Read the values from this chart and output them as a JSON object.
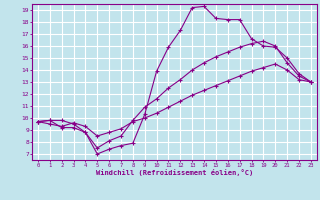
{
  "background_color": "#c2e4ec",
  "grid_color": "#ffffff",
  "line_color": "#880088",
  "xlabel": "Windchill (Refroidissement éolien,°C)",
  "xlim": [
    -0.5,
    23.5
  ],
  "ylim": [
    6.5,
    19.5
  ],
  "xticks": [
    0,
    1,
    2,
    3,
    4,
    5,
    6,
    7,
    8,
    9,
    10,
    11,
    12,
    13,
    14,
    15,
    16,
    17,
    18,
    19,
    20,
    21,
    22,
    23
  ],
  "yticks": [
    7,
    8,
    9,
    10,
    11,
    12,
    13,
    14,
    15,
    16,
    17,
    18,
    19
  ],
  "line1_x": [
    0,
    1,
    2,
    3,
    4,
    5,
    6,
    7,
    8,
    9,
    10,
    11,
    12,
    13,
    14,
    15,
    16,
    17,
    18,
    19,
    20,
    21,
    22,
    23
  ],
  "line1_y": [
    9.7,
    9.8,
    9.8,
    9.5,
    8.8,
    7.0,
    7.4,
    7.7,
    7.9,
    10.3,
    13.9,
    15.9,
    17.3,
    19.2,
    19.3,
    18.3,
    18.2,
    18.2,
    16.6,
    16.0,
    15.9,
    15.0,
    13.7,
    13.0
  ],
  "line2_x": [
    0,
    1,
    2,
    3,
    4,
    5,
    6,
    7,
    8,
    9,
    10,
    11,
    12,
    13,
    14,
    15,
    16,
    17,
    18,
    19,
    20,
    21,
    22,
    23
  ],
  "line2_y": [
    9.7,
    9.8,
    9.2,
    9.2,
    8.8,
    7.5,
    8.1,
    8.5,
    9.8,
    10.9,
    11.6,
    12.5,
    13.2,
    14.0,
    14.6,
    15.1,
    15.5,
    15.9,
    16.2,
    16.4,
    16.0,
    14.6,
    13.5,
    13.0
  ],
  "line3_x": [
    0,
    1,
    2,
    3,
    4,
    5,
    6,
    7,
    8,
    9,
    10,
    11,
    12,
    13,
    14,
    15,
    16,
    17,
    18,
    19,
    20,
    21,
    22,
    23
  ],
  "line3_y": [
    9.7,
    9.5,
    9.3,
    9.6,
    9.3,
    8.5,
    8.8,
    9.1,
    9.7,
    10.0,
    10.4,
    10.9,
    11.4,
    11.9,
    12.3,
    12.7,
    13.1,
    13.5,
    13.9,
    14.2,
    14.5,
    14.0,
    13.2,
    13.0
  ]
}
